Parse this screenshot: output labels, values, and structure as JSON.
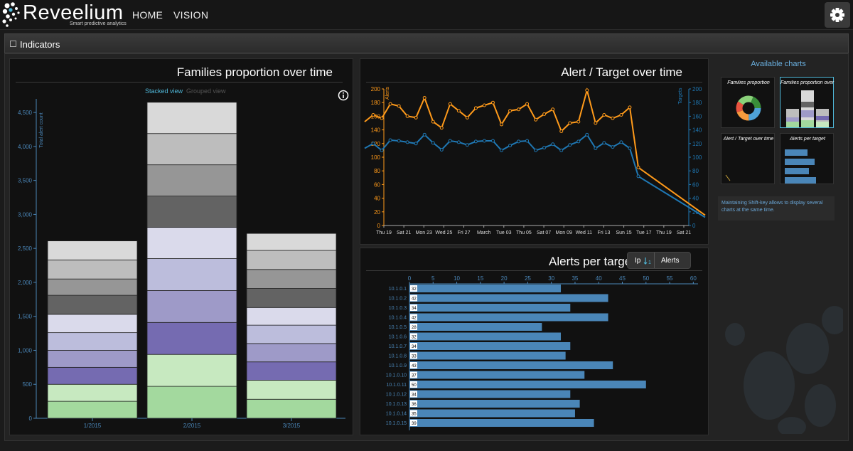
{
  "header": {
    "brand": "Reveelium",
    "tagline": "Smart predictive analytics",
    "nav": [
      "HOME",
      "VISION"
    ]
  },
  "page": {
    "section_title": "Indicators"
  },
  "families_chart": {
    "title": "Families proportion over time",
    "view_toggle": {
      "stacked": "Stacked view",
      "grouped": "Grouped view"
    },
    "ylabel": "Total alert count",
    "chart_data": {
      "type": "bar",
      "stacked": true,
      "categories": [
        "1/2015",
        "2/2015",
        "3/2015"
      ],
      "ylim": [
        0,
        4700
      ],
      "yticks": [
        0,
        500,
        1000,
        1500,
        2000,
        2500,
        3000,
        3500,
        4000,
        4500
      ],
      "ytick_labels": [
        "0",
        "500",
        "1,000",
        "1,500",
        "2,000",
        "2,500",
        "3,000",
        "3,500",
        "4,000",
        "4,500"
      ],
      "series_colors": [
        "#a3d99e",
        "#c7e9c0",
        "#756bb1",
        "#9e9ac8",
        "#bcbddc",
        "#dadaeb",
        "#636363",
        "#969696",
        "#bdbdbd",
        "#d9d9d9"
      ],
      "series": [
        {
          "values": [
            250,
            470,
            280
          ]
        },
        {
          "values": [
            250,
            470,
            280
          ]
        },
        {
          "values": [
            250,
            470,
            270
          ]
        },
        {
          "values": [
            250,
            470,
            270
          ]
        },
        {
          "values": [
            260,
            470,
            270
          ]
        },
        {
          "values": [
            270,
            460,
            260
          ]
        },
        {
          "values": [
            280,
            460,
            280
          ]
        },
        {
          "values": [
            240,
            460,
            280
          ]
        },
        {
          "values": [
            280,
            460,
            280
          ]
        },
        {
          "values": [
            280,
            460,
            250
          ]
        }
      ]
    }
  },
  "alert_target_chart": {
    "title": "Alert / Target over time",
    "left_axis_label": "Alerts",
    "right_axis_label": "Targets",
    "chart_data": {
      "type": "line",
      "x_labels": [
        "Thu 19",
        "Sat 21",
        "Mon 23",
        "Wed 25",
        "Fri 27",
        "March",
        "Tue 03",
        "Thu 05",
        "Sat 07",
        "Mon 09",
        "Wed 11",
        "Fri 13",
        "Sun 15",
        "Tue 17",
        "Thu 19",
        "Sat 21"
      ],
      "ylim": [
        0,
        200
      ],
      "yticks": [
        0,
        20,
        40,
        60,
        80,
        100,
        120,
        140,
        160,
        180,
        200
      ],
      "colors": {
        "alerts": "#ff9a1a",
        "targets": "#1f78b4"
      },
      "series": [
        {
          "name": "Alerts",
          "values": [
            152,
            162,
            157,
            178,
            175,
            160,
            158,
            187,
            152,
            143,
            178,
            168,
            158,
            172,
            176,
            180,
            148,
            168,
            170,
            178,
            155,
            163,
            170,
            138,
            150,
            152,
            198,
            150,
            162,
            157,
            162,
            173,
            85,
            15
          ]
        },
        {
          "name": "Targets",
          "values": [
            113,
            120,
            110,
            125,
            124,
            122,
            120,
            133,
            121,
            111,
            124,
            122,
            118,
            123,
            124,
            124,
            110,
            117,
            123,
            124,
            110,
            114,
            119,
            110,
            118,
            123,
            133,
            113,
            121,
            115,
            122,
            113,
            72,
            12
          ]
        }
      ]
    }
  },
  "alerts_per_target_chart": {
    "title": "Alerts per target",
    "sort_ip": "Ip",
    "sort_alerts": "Alerts",
    "chart_data": {
      "type": "bar",
      "orientation": "horizontal",
      "xlim": [
        0,
        61
      ],
      "xticks": [
        0,
        5,
        10,
        15,
        20,
        25,
        30,
        35,
        40,
        45,
        50,
        55,
        60
      ],
      "categories": [
        "10.1.0.1",
        "10.1.0.2",
        "10.1.0.3",
        "10.1.0.4",
        "10.1.0.5",
        "10.1.0.6",
        "10.1.0.7",
        "10.1.0.8",
        "10.1.0.9",
        "10.1.0.10",
        "10.1.0.11",
        "10.1.0.12",
        "10.1.0.13",
        "10.1.0.14",
        "10.1.0.15"
      ],
      "values": [
        32,
        42,
        34,
        42,
        28,
        32,
        34,
        33,
        43,
        37,
        50,
        34,
        36,
        35,
        39
      ],
      "color": "#4a86b8"
    }
  },
  "sidebar": {
    "title": "Available charts",
    "thumbnails": [
      {
        "label": "Families proportion"
      },
      {
        "label": "Families proportion over time"
      },
      {
        "label": "Alert / Target over time"
      },
      {
        "label": "Alerts per target"
      }
    ],
    "hint": "Maintaining Shift-key allows to display several charts at the same time."
  }
}
